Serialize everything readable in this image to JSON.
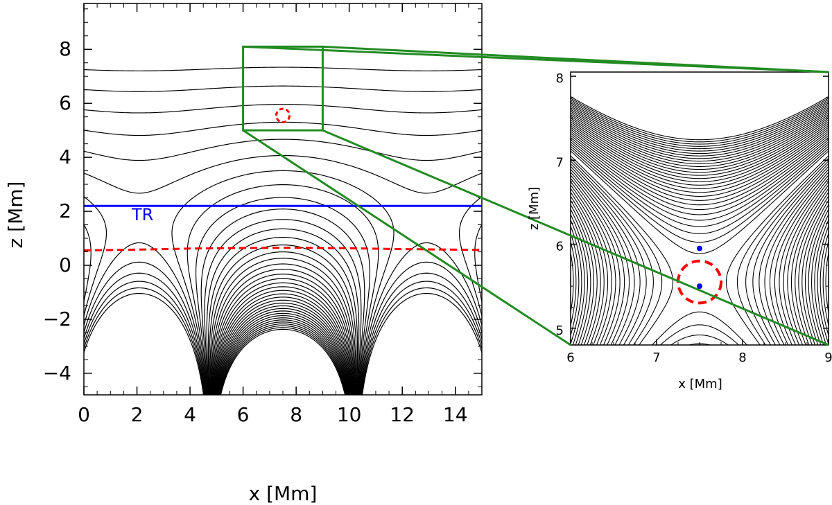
{
  "chart_data": [
    {
      "type": "line",
      "xlabel": "x [Mm]",
      "ylabel": "z [Mm]",
      "xlim": [
        0,
        15
      ],
      "ylim": [
        -4.8,
        9.7
      ],
      "xticks": [
        0,
        2,
        4,
        6,
        8,
        10,
        12,
        14
      ],
      "xtick_labels": [
        "0",
        "2",
        "4",
        "6",
        "8",
        "10",
        "12",
        "14"
      ],
      "yticks": [
        -4,
        -2,
        0,
        2,
        4,
        6,
        8
      ],
      "ytick_labels": [
        "−4",
        "−2",
        "0",
        "2",
        "4",
        "6",
        "8"
      ],
      "grid": false,
      "series": [
        {
          "kind": "field-lines",
          "color": "#000000"
        },
        {
          "kind": "horizontal-line",
          "y": 2.2,
          "color": "#0000ff",
          "label": "TR"
        },
        {
          "kind": "dashed-curve",
          "color": "#ff0000",
          "x": [
            0,
            2,
            4,
            6,
            8,
            10,
            12,
            15
          ],
          "y": [
            0.55,
            0.58,
            0.62,
            0.64,
            0.65,
            0.63,
            0.6,
            0.57
          ]
        },
        {
          "kind": "dashed-circle",
          "color": "#ff0000",
          "cx": 7.5,
          "cy": 5.55,
          "r": 0.25
        }
      ],
      "annotations": [
        {
          "kind": "zoom-box",
          "color": "#228b22",
          "x": [
            6,
            9
          ],
          "y": [
            5,
            8.1
          ]
        }
      ]
    },
    {
      "type": "line",
      "xlabel": "x [Mm]",
      "ylabel": "z [Mm]",
      "xlim": [
        6,
        9
      ],
      "ylim": [
        4.8,
        8.05
      ],
      "xticks": [
        6,
        7,
        8,
        9
      ],
      "xtick_labels": [
        "6",
        "7",
        "8",
        "9"
      ],
      "yticks": [
        5,
        6,
        7,
        8
      ],
      "ytick_labels": [
        "5",
        "6",
        "7",
        "8"
      ],
      "grid": false,
      "series": [
        {
          "kind": "field-lines",
          "color": "#000000"
        },
        {
          "kind": "dashed-circle",
          "color": "#ff0000",
          "cx": 7.5,
          "cy": 5.55,
          "r": 0.25
        },
        {
          "kind": "points",
          "color": "#0000ff",
          "x": [
            7.5,
            7.5
          ],
          "y": [
            5.95,
            5.5
          ]
        }
      ]
    }
  ],
  "colors": {
    "axis": "#000000",
    "field": "#000000",
    "tr": "#0000ff",
    "red": "#ff0000",
    "zoom": "#228b22"
  }
}
